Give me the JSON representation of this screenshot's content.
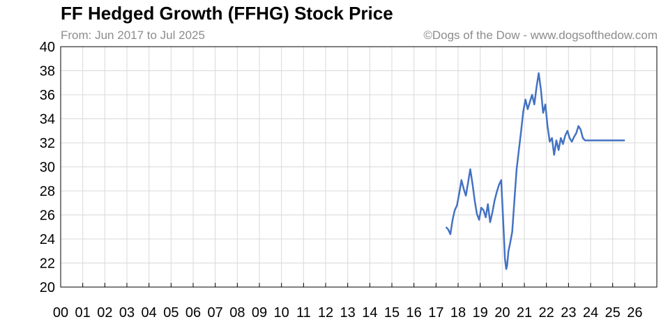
{
  "chart_data": {
    "type": "line",
    "title": "FF Hedged Growth (FFHG) Stock Price",
    "subtitle": "From: Jun 2017 to Jul 2025",
    "credit": "©Dogs of the Dow - www.dogsofthedow.com",
    "xlabel": "",
    "ylabel": "",
    "xlim": [
      2000,
      2027
    ],
    "ylim": [
      20,
      40
    ],
    "yticks": [
      20,
      22,
      24,
      26,
      28,
      30,
      32,
      34,
      36,
      38,
      40
    ],
    "xtick_labels": [
      "00",
      "01",
      "02",
      "03",
      "04",
      "05",
      "06",
      "07",
      "08",
      "09",
      "10",
      "11",
      "12",
      "13",
      "14",
      "15",
      "16",
      "17",
      "18",
      "19",
      "20",
      "21",
      "22",
      "23",
      "24",
      "25",
      "26"
    ],
    "grid": true,
    "line_color": "#4472c4",
    "series": [
      {
        "x": [
          2017.45,
          2017.55,
          2017.65,
          2017.75,
          2017.85,
          2017.95,
          2018.05,
          2018.15,
          2018.25,
          2018.35,
          2018.45,
          2018.55,
          2018.65,
          2018.75,
          2018.85,
          2018.95,
          2019.05,
          2019.15,
          2019.25,
          2019.35,
          2019.45,
          2019.55,
          2019.65,
          2019.75,
          2019.85,
          2019.95,
          2020.05,
          2020.12,
          2020.18,
          2020.22,
          2020.28,
          2020.35,
          2020.45,
          2020.55,
          2020.65,
          2020.75,
          2020.85,
          2020.95,
          2021.05,
          2021.15,
          2021.25,
          2021.35,
          2021.45,
          2021.55,
          2021.65,
          2021.75,
          2021.85,
          2021.95,
          2022.05,
          2022.15,
          2022.25,
          2022.35,
          2022.45,
          2022.55,
          2022.65,
          2022.75,
          2022.85,
          2022.95,
          2023.05,
          2023.15,
          2023.25,
          2023.35,
          2023.45,
          2023.55,
          2023.65,
          2023.75,
          2024.0,
          2024.5,
          2025.0,
          2025.55
        ],
        "y": [
          25.0,
          24.8,
          24.4,
          25.6,
          26.4,
          26.8,
          27.8,
          28.9,
          28.2,
          27.6,
          28.7,
          29.8,
          28.6,
          27.2,
          26.1,
          25.6,
          26.6,
          26.4,
          25.8,
          26.9,
          25.4,
          26.2,
          27.2,
          27.9,
          28.5,
          28.9,
          25.2,
          22.4,
          21.5,
          21.8,
          23.0,
          23.6,
          24.6,
          27.2,
          29.8,
          31.4,
          32.9,
          34.6,
          35.6,
          34.8,
          35.4,
          36.0,
          35.2,
          36.6,
          37.8,
          36.4,
          34.5,
          35.2,
          33.4,
          32.1,
          32.4,
          31.0,
          32.2,
          31.4,
          32.4,
          31.9,
          32.6,
          33.0,
          32.4,
          32.1,
          32.5,
          32.8,
          33.4,
          33.1,
          32.4,
          32.2,
          32.2,
          32.2,
          32.2,
          32.2
        ]
      }
    ]
  }
}
